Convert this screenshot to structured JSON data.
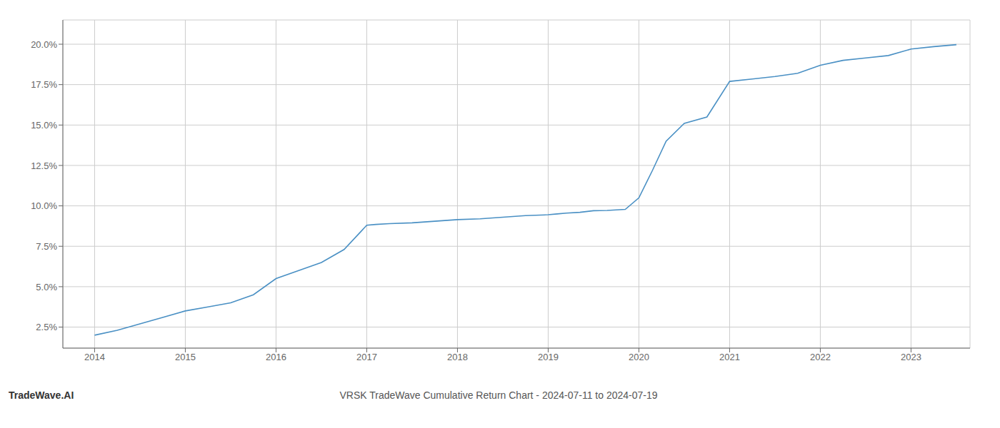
{
  "chart_data": {
    "type": "line",
    "title": "VRSK TradeWave Cumulative Return Chart - 2024-07-11 to 2024-07-19",
    "annotations": [
      "TradeWave.AI"
    ],
    "color": "#4a90c4",
    "grid": true,
    "x": [
      2014.0,
      2014.25,
      2014.5,
      2014.75,
      2015.0,
      2015.25,
      2015.5,
      2015.75,
      2016.0,
      2016.25,
      2016.5,
      2016.75,
      2017.0,
      2017.1,
      2017.25,
      2017.5,
      2017.75,
      2018.0,
      2018.25,
      2018.5,
      2018.75,
      2019.0,
      2019.1,
      2019.2,
      2019.35,
      2019.5,
      2019.65,
      2019.75,
      2019.85,
      2020.0,
      2020.15,
      2020.3,
      2020.5,
      2020.75,
      2021.0,
      2021.25,
      2021.5,
      2021.75,
      2022.0,
      2022.25,
      2022.5,
      2022.75,
      2023.0,
      2023.25,
      2023.5
    ],
    "values": [
      2.0,
      2.3,
      2.7,
      3.1,
      3.5,
      3.75,
      4.0,
      4.5,
      5.5,
      6.0,
      6.5,
      7.3,
      8.8,
      8.85,
      8.9,
      8.95,
      9.05,
      9.15,
      9.2,
      9.3,
      9.4,
      9.45,
      9.5,
      9.55,
      9.6,
      9.7,
      9.72,
      9.75,
      9.78,
      10.5,
      12.2,
      14.0,
      15.1,
      15.5,
      17.7,
      17.85,
      18.0,
      18.2,
      18.7,
      19.0,
      19.15,
      19.3,
      19.7,
      19.85,
      19.97
    ],
    "xlim": [
      2013.65,
      2023.65
    ],
    "ylim": [
      1.2,
      21.5
    ],
    "xticks": [
      2014,
      2015,
      2016,
      2017,
      2018,
      2019,
      2020,
      2021,
      2022,
      2023
    ],
    "yticks": [
      {
        "value": 2.5,
        "label": "2.5%"
      },
      {
        "value": 5.0,
        "label": "5.0%"
      },
      {
        "value": 7.5,
        "label": "7.5%"
      },
      {
        "value": 10.0,
        "label": "10.0%"
      },
      {
        "value": 12.5,
        "label": "12.5%"
      },
      {
        "value": 15.0,
        "label": "15.0%"
      },
      {
        "value": 17.5,
        "label": "17.5%"
      },
      {
        "value": 20.0,
        "label": "20.0%"
      }
    ]
  }
}
